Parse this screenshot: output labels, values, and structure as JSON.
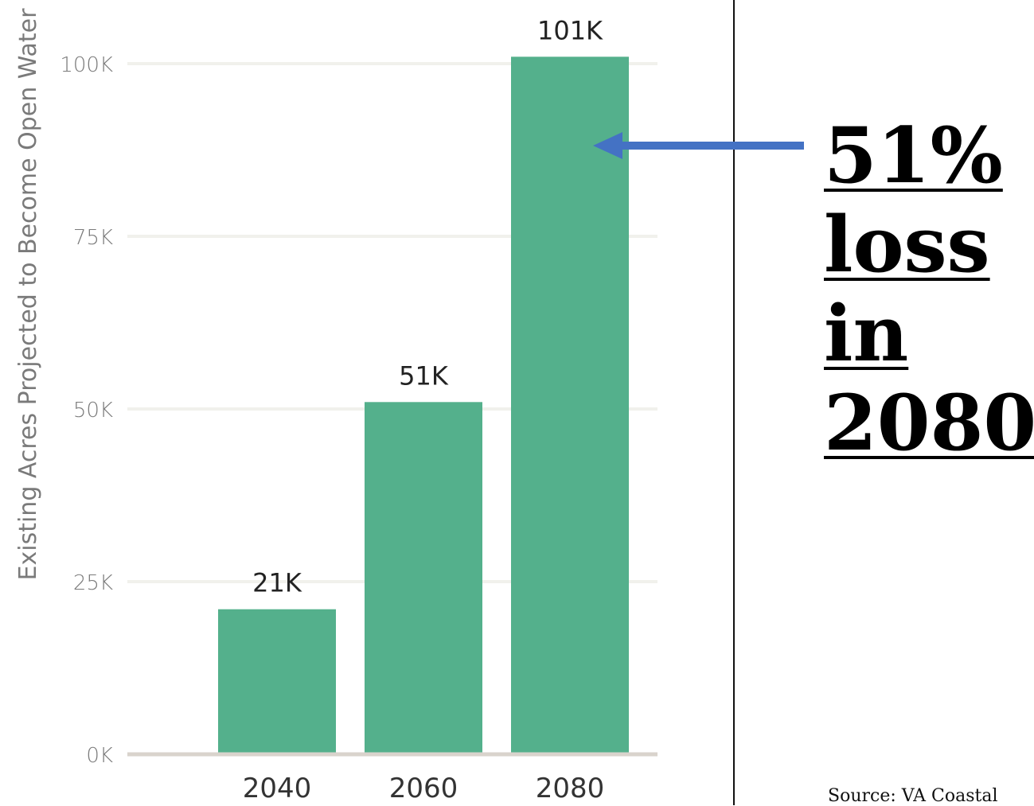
{
  "chart_data": {
    "type": "bar",
    "categories": [
      "2040",
      "2060",
      "2080"
    ],
    "values": [
      21000,
      51000,
      101000
    ],
    "data_labels": [
      "21K",
      "51K",
      "101K"
    ],
    "ylabel": "Existing Acres Projected to Become Open Water",
    "xlabel": "",
    "ylim": [
      0,
      100000
    ],
    "yticks": [
      0,
      25000,
      50000,
      75000,
      100000
    ],
    "ytick_labels": [
      "0K",
      "25K",
      "50K",
      "75K",
      "100K"
    ],
    "grid": true,
    "bar_color": "#54b08c",
    "grid_color": "#f1f1ec",
    "baseline_color": "#d9d3cc"
  },
  "annotation": {
    "lines": [
      "51%",
      "loss",
      "in",
      "2080"
    ],
    "arrow_color": "#4472c4",
    "arrow_target_category": "2080"
  },
  "source_text": "Source: VA Coastal"
}
